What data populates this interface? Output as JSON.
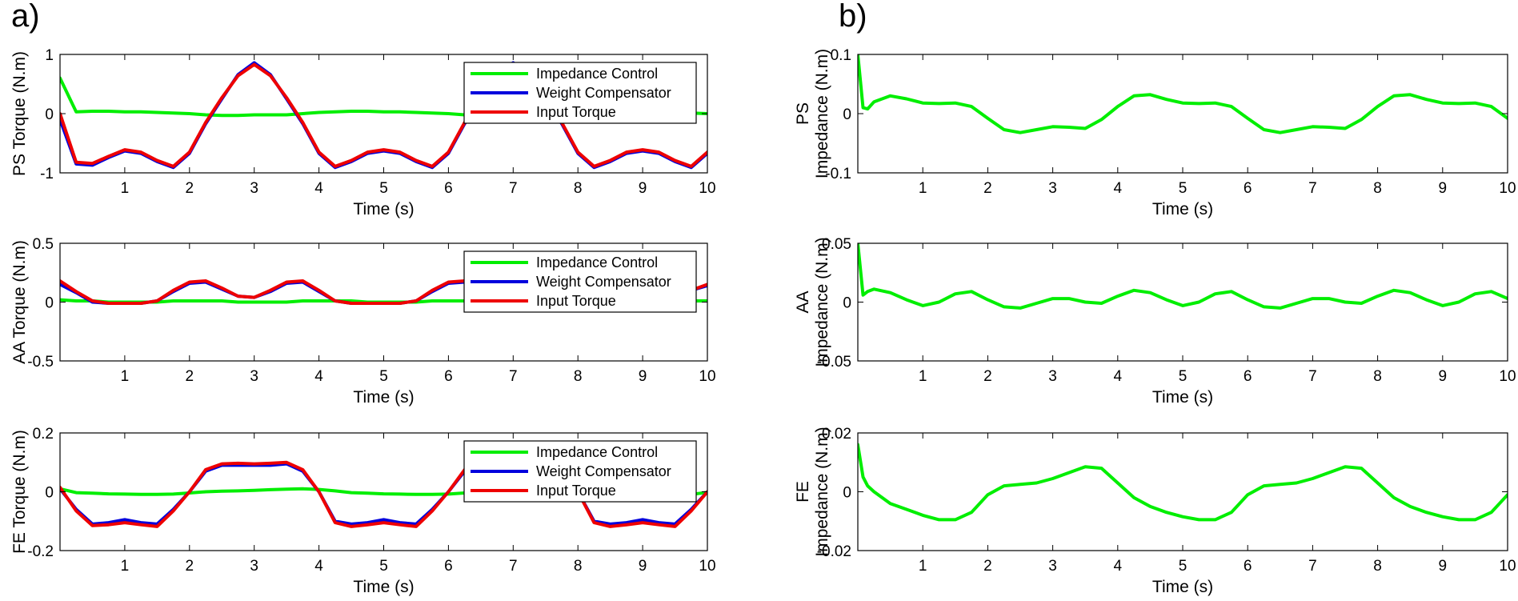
{
  "panels": [
    {
      "label": "a)"
    },
    {
      "label": "b)"
    }
  ],
  "colors": {
    "impedance": "#00ee00",
    "weight": "#0000dd",
    "input": "#ee0000"
  },
  "chart_data": [
    {
      "type": "line",
      "panel": "a)",
      "xlabel": "Time (s)",
      "ylabel": "PS Torque (N.m)",
      "xlim": [
        0,
        10
      ],
      "ylim": [
        -1,
        1
      ],
      "xticks": [
        "1",
        "2",
        "3",
        "4",
        "5",
        "6",
        "7",
        "8",
        "9",
        "10"
      ],
      "yticks": [
        "-1",
        "0",
        "1"
      ],
      "legend": "top-right",
      "x": [
        0,
        0.25,
        0.5,
        0.75,
        1,
        1.25,
        1.5,
        1.75,
        2,
        2.25,
        2.5,
        2.75,
        3,
        3.25,
        3.5,
        3.75,
        4,
        4.25,
        4.5,
        4.75,
        5,
        5.25,
        5.5,
        5.75,
        6,
        6.25,
        6.5,
        6.75,
        7,
        7.25,
        7.5,
        7.75,
        8,
        8.25,
        8.5,
        8.75,
        9,
        9.25,
        9.5,
        9.75,
        10
      ],
      "series": [
        {
          "name": "Impedance Control",
          "values": [
            0.6,
            0.03,
            0.04,
            0.04,
            0.03,
            0.03,
            0.02,
            0.01,
            0.0,
            -0.02,
            -0.03,
            -0.03,
            -0.02,
            -0.02,
            -0.02,
            0.0,
            0.02,
            0.03,
            0.04,
            0.04,
            0.03,
            0.03,
            0.02,
            0.01,
            0.0,
            -0.02,
            -0.03,
            -0.03,
            -0.02,
            -0.02,
            -0.02,
            0.0,
            0.02,
            0.03,
            0.04,
            0.04,
            0.03,
            0.03,
            0.02,
            0.01,
            0.0
          ]
        },
        {
          "name": "Weight Compensator",
          "values": [
            -0.1,
            -0.85,
            -0.87,
            -0.74,
            -0.63,
            -0.67,
            -0.81,
            -0.91,
            -0.67,
            -0.17,
            0.25,
            0.66,
            0.86,
            0.66,
            0.25,
            -0.17,
            -0.67,
            -0.91,
            -0.81,
            -0.67,
            -0.63,
            -0.67,
            -0.81,
            -0.91,
            -0.67,
            -0.17,
            0.25,
            0.66,
            0.86,
            0.66,
            0.25,
            -0.17,
            -0.67,
            -0.91,
            -0.81,
            -0.67,
            -0.63,
            -0.67,
            -0.81,
            -0.91,
            -0.67
          ]
        },
        {
          "name": "Input Torque",
          "values": [
            0.0,
            -0.82,
            -0.84,
            -0.72,
            -0.61,
            -0.65,
            -0.79,
            -0.89,
            -0.65,
            -0.15,
            0.27,
            0.64,
            0.83,
            0.64,
            0.27,
            -0.15,
            -0.65,
            -0.89,
            -0.79,
            -0.65,
            -0.61,
            -0.65,
            -0.79,
            -0.89,
            -0.65,
            -0.15,
            0.27,
            0.64,
            0.83,
            0.64,
            0.27,
            -0.15,
            -0.65,
            -0.89,
            -0.79,
            -0.65,
            -0.61,
            -0.65,
            -0.79,
            -0.89,
            -0.65
          ]
        }
      ]
    },
    {
      "type": "line",
      "panel": "a)",
      "xlabel": "Time (s)",
      "ylabel": "AA Torque (N.m)",
      "xlim": [
        0,
        10
      ],
      "ylim": [
        -0.5,
        0.5
      ],
      "xticks": [
        "1",
        "2",
        "3",
        "4",
        "5",
        "6",
        "7",
        "8",
        "9",
        "10"
      ],
      "yticks": [
        "-0.5",
        "0",
        "0.5"
      ],
      "legend": "top-right",
      "x": [
        0,
        0.25,
        0.5,
        0.75,
        1,
        1.25,
        1.5,
        1.75,
        2,
        2.25,
        2.5,
        2.75,
        3,
        3.25,
        3.5,
        3.75,
        4,
        4.25,
        4.5,
        4.75,
        5,
        5.25,
        5.5,
        5.75,
        6,
        6.25,
        6.5,
        6.75,
        7,
        7.25,
        7.5,
        7.75,
        8,
        8.25,
        8.5,
        8.75,
        9,
        9.25,
        9.5,
        9.75,
        10
      ],
      "series": [
        {
          "name": "Impedance Control",
          "values": [
            0.02,
            0.01,
            0.01,
            0.0,
            0.0,
            0.0,
            0.0,
            0.01,
            0.01,
            0.01,
            0.01,
            0.0,
            0.0,
            0.0,
            0.0,
            0.01,
            0.01,
            0.01,
            0.01,
            0.0,
            0.0,
            0.0,
            0.0,
            0.01,
            0.01,
            0.01,
            0.01,
            0.0,
            0.0,
            0.0,
            0.0,
            0.01,
            0.01,
            0.01,
            0.01,
            0.0,
            0.0,
            0.0,
            0.0,
            0.01,
            0.01
          ]
        },
        {
          "name": "Weight Compensator",
          "values": [
            0.15,
            0.08,
            0.0,
            -0.01,
            -0.01,
            -0.01,
            0.01,
            0.09,
            0.16,
            0.17,
            0.11,
            0.05,
            0.04,
            0.09,
            0.16,
            0.17,
            0.09,
            0.01,
            -0.01,
            -0.01,
            -0.01,
            -0.01,
            0.01,
            0.09,
            0.16,
            0.17,
            0.11,
            0.05,
            0.04,
            0.09,
            0.16,
            0.17,
            0.09,
            0.01,
            -0.01,
            -0.01,
            -0.01,
            0.0,
            0.04,
            0.1,
            0.14
          ]
        },
        {
          "name": "Input Torque",
          "values": [
            0.18,
            0.09,
            0.01,
            -0.01,
            -0.01,
            -0.01,
            0.01,
            0.1,
            0.17,
            0.18,
            0.12,
            0.05,
            0.04,
            0.1,
            0.17,
            0.18,
            0.1,
            0.01,
            -0.01,
            -0.01,
            -0.01,
            -0.01,
            0.01,
            0.1,
            0.17,
            0.18,
            0.12,
            0.05,
            0.04,
            0.1,
            0.17,
            0.18,
            0.1,
            0.01,
            -0.01,
            -0.01,
            -0.01,
            0.0,
            0.04,
            0.1,
            0.15
          ]
        }
      ]
    },
    {
      "type": "line",
      "panel": "a)",
      "xlabel": "Time (s)",
      "ylabel": "FE Torque (N.m)",
      "xlim": [
        0,
        10
      ],
      "ylim": [
        -0.2,
        0.2
      ],
      "xticks": [
        "1",
        "2",
        "3",
        "4",
        "5",
        "6",
        "7",
        "8",
        "9",
        "10"
      ],
      "yticks": [
        "-0.2",
        "0",
        "0.2"
      ],
      "legend": "top-right",
      "x": [
        0,
        0.25,
        0.5,
        0.75,
        1,
        1.25,
        1.5,
        1.75,
        2,
        2.25,
        2.5,
        2.75,
        3,
        3.25,
        3.5,
        3.75,
        4,
        4.25,
        4.5,
        4.75,
        5,
        5.25,
        5.5,
        5.75,
        6,
        6.25,
        6.5,
        6.75,
        7,
        7.25,
        7.5,
        7.75,
        8,
        8.25,
        8.5,
        8.75,
        9,
        9.25,
        9.5,
        9.75,
        10
      ],
      "series": [
        {
          "name": "Impedance Control",
          "values": [
            0.01,
            -0.003,
            -0.005,
            -0.007,
            -0.008,
            -0.009,
            -0.009,
            -0.008,
            -0.004,
            0.0,
            0.002,
            0.003,
            0.005,
            0.007,
            0.009,
            0.01,
            0.008,
            0.003,
            -0.003,
            -0.005,
            -0.007,
            -0.008,
            -0.009,
            -0.009,
            -0.008,
            -0.004,
            0.0,
            0.002,
            0.003,
            0.005,
            0.007,
            0.009,
            0.01,
            0.008,
            0.003,
            -0.003,
            -0.005,
            -0.007,
            -0.008,
            -0.009,
            -0.002
          ]
        },
        {
          "name": "Weight Compensator",
          "values": [
            0.01,
            -0.06,
            -0.11,
            -0.105,
            -0.095,
            -0.105,
            -0.11,
            -0.06,
            0.0,
            0.07,
            0.09,
            0.09,
            0.09,
            0.09,
            0.095,
            0.07,
            0.0,
            -0.1,
            -0.11,
            -0.105,
            -0.095,
            -0.105,
            -0.11,
            -0.06,
            0.0,
            0.07,
            0.09,
            0.09,
            0.09,
            0.09,
            0.095,
            0.07,
            0.0,
            -0.1,
            -0.11,
            -0.105,
            -0.095,
            -0.105,
            -0.11,
            -0.06,
            0.0
          ]
        },
        {
          "name": "Input Torque",
          "values": [
            0.015,
            -0.065,
            -0.115,
            -0.112,
            -0.105,
            -0.112,
            -0.118,
            -0.065,
            0.0,
            0.075,
            0.095,
            0.097,
            0.095,
            0.097,
            0.1,
            0.075,
            0.0,
            -0.105,
            -0.118,
            -0.112,
            -0.105,
            -0.112,
            -0.118,
            -0.065,
            0.0,
            0.075,
            0.095,
            0.097,
            0.095,
            0.097,
            0.1,
            0.075,
            0.0,
            -0.105,
            -0.118,
            -0.112,
            -0.105,
            -0.112,
            -0.118,
            -0.065,
            0.0
          ]
        }
      ]
    },
    {
      "type": "line",
      "panel": "b)",
      "xlabel": "Time (s)",
      "ylabel": "PS",
      "ylabel2": "Impedance (N.m)",
      "xlim": [
        0,
        10
      ],
      "ylim": [
        -0.1,
        0.1
      ],
      "xticks": [
        "1",
        "2",
        "3",
        "4",
        "5",
        "6",
        "7",
        "8",
        "9",
        "10"
      ],
      "yticks": [
        "-0.1",
        "0",
        "0.1"
      ],
      "x": [
        0,
        0.08,
        0.15,
        0.25,
        0.5,
        0.75,
        1,
        1.25,
        1.5,
        1.75,
        2,
        2.25,
        2.5,
        2.75,
        3,
        3.25,
        3.5,
        3.75,
        4,
        4.25,
        4.5,
        4.75,
        5,
        5.25,
        5.5,
        5.75,
        6,
        6.25,
        6.5,
        6.75,
        7,
        7.25,
        7.5,
        7.75,
        8,
        8.25,
        8.5,
        8.75,
        9,
        9.25,
        9.5,
        9.75,
        10
      ],
      "series": [
        {
          "values": [
            0.1,
            0.01,
            0.008,
            0.02,
            0.03,
            0.025,
            0.018,
            0.017,
            0.018,
            0.012,
            -0.008,
            -0.027,
            -0.032,
            -0.027,
            -0.022,
            -0.023,
            -0.025,
            -0.01,
            0.012,
            0.03,
            0.032,
            0.024,
            0.018,
            0.017,
            0.018,
            0.012,
            -0.008,
            -0.027,
            -0.032,
            -0.027,
            -0.022,
            -0.023,
            -0.025,
            -0.01,
            0.012,
            0.03,
            0.032,
            0.024,
            0.018,
            0.017,
            0.018,
            0.012,
            -0.008
          ]
        }
      ]
    },
    {
      "type": "line",
      "panel": "b)",
      "xlabel": "Time (s)",
      "ylabel": "AA",
      "ylabel2": "Impedance (N.m)",
      "xlim": [
        0,
        10
      ],
      "ylim": [
        -0.05,
        0.05
      ],
      "xticks": [
        "1",
        "2",
        "3",
        "4",
        "5",
        "6",
        "7",
        "8",
        "9",
        "10"
      ],
      "yticks": [
        "-0.05",
        "0",
        "0.05"
      ],
      "x": [
        0,
        0.08,
        0.15,
        0.25,
        0.5,
        0.75,
        1,
        1.25,
        1.5,
        1.75,
        2,
        2.25,
        2.5,
        2.75,
        3,
        3.25,
        3.5,
        3.75,
        4,
        4.25,
        4.5,
        4.75,
        5,
        5.25,
        5.5,
        5.75,
        6,
        6.25,
        6.5,
        6.75,
        7,
        7.25,
        7.5,
        7.75,
        8,
        8.25,
        8.5,
        8.75,
        9,
        9.25,
        9.5,
        9.75,
        10
      ],
      "series": [
        {
          "values": [
            0.05,
            0.006,
            0.009,
            0.011,
            0.008,
            0.002,
            -0.003,
            0.0,
            0.007,
            0.009,
            0.002,
            -0.004,
            -0.005,
            -0.001,
            0.003,
            0.003,
            0.0,
            -0.001,
            0.005,
            0.01,
            0.008,
            0.002,
            -0.003,
            0.0,
            0.007,
            0.009,
            0.002,
            -0.004,
            -0.005,
            -0.001,
            0.003,
            0.003,
            0.0,
            -0.001,
            0.005,
            0.01,
            0.008,
            0.002,
            -0.003,
            0.0,
            0.007,
            0.009,
            0.003
          ]
        }
      ]
    },
    {
      "type": "line",
      "panel": "b)",
      "xlabel": "Time (s)",
      "ylabel": "FE",
      "ylabel2": "Impedance (N.m)",
      "xlim": [
        0,
        10
      ],
      "ylim": [
        -0.02,
        0.02
      ],
      "xticks": [
        "1",
        "2",
        "3",
        "4",
        "5",
        "6",
        "7",
        "8",
        "9",
        "10"
      ],
      "yticks": [
        "-0.02",
        "0",
        "0.02"
      ],
      "x": [
        0,
        0.08,
        0.15,
        0.25,
        0.5,
        0.75,
        1,
        1.25,
        1.5,
        1.75,
        2,
        2.25,
        2.5,
        2.75,
        3,
        3.25,
        3.5,
        3.75,
        4,
        4.25,
        4.5,
        4.75,
        5,
        5.25,
        5.5,
        5.75,
        6,
        6.25,
        6.5,
        6.75,
        7,
        7.25,
        7.5,
        7.75,
        8,
        8.25,
        8.5,
        8.75,
        9,
        9.25,
        9.5,
        9.75,
        10
      ],
      "series": [
        {
          "values": [
            0.016,
            0.005,
            0.002,
            0.0,
            -0.004,
            -0.006,
            -0.008,
            -0.0095,
            -0.0095,
            -0.007,
            -0.001,
            0.002,
            0.0025,
            0.003,
            0.0045,
            0.0065,
            0.0085,
            0.008,
            0.003,
            -0.002,
            -0.005,
            -0.007,
            -0.0085,
            -0.0095,
            -0.0095,
            -0.007,
            -0.001,
            0.002,
            0.0025,
            0.003,
            0.0045,
            0.0065,
            0.0085,
            0.008,
            0.003,
            -0.002,
            -0.005,
            -0.007,
            -0.0085,
            -0.0095,
            -0.0095,
            -0.007,
            -0.001
          ]
        }
      ]
    }
  ]
}
